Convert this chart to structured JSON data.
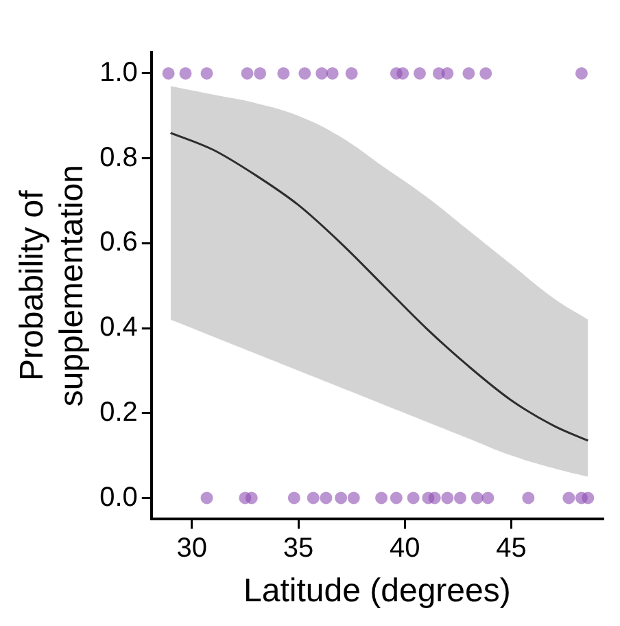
{
  "chart_data": {
    "type": "line",
    "xlabel": "Latitude (degrees)",
    "ylabel": "Probability of\nsupplementation",
    "xlim": [
      28.1,
      49.3
    ],
    "ylim": [
      -0.05,
      1.05
    ],
    "xticks": [
      30,
      35,
      40,
      45
    ],
    "yticks": [
      {
        "value": 0,
        "label": "0.0"
      },
      0.2,
      0.4,
      0.6,
      0.8,
      {
        "value": 1,
        "label": "1.0"
      }
    ],
    "grid": false,
    "legend": false,
    "series": [
      {
        "color": "#000000",
        "marker": "none",
        "line_style": "solid",
        "x": [
          29,
          31,
          33,
          35,
          37,
          39,
          41,
          43,
          45,
          47,
          48.6
        ],
        "values": [
          0.86,
          0.82,
          0.76,
          0.69,
          0.6,
          0.5,
          0.4,
          0.31,
          0.23,
          0.17,
          0.135
        ],
        "lower": [
          0.42,
          0.38,
          0.34,
          0.3,
          0.26,
          0.22,
          0.18,
          0.14,
          0.1,
          0.07,
          0.05
        ],
        "upper": [
          0.97,
          0.95,
          0.93,
          0.9,
          0.85,
          0.78,
          0.71,
          0.63,
          0.55,
          0.47,
          0.42
        ]
      },
      {
        "type": "scatter",
        "color": "#8e4fb3",
        "marker": "circle",
        "x": [
          28.9,
          29.7,
          30.7,
          32.6,
          33.2,
          34.3,
          35.3,
          36.1,
          36.6,
          37.5,
          39.6,
          39.9,
          40.7,
          41.6,
          42.0,
          43.0,
          43.8,
          48.3,
          30.7,
          32.5,
          32.8,
          34.8,
          35.7,
          36.3,
          37.0,
          37.6,
          38.9,
          39.6,
          40.4,
          41.1,
          41.4,
          42.0,
          42.6,
          43.4,
          43.9,
          45.8,
          47.7,
          48.3,
          48.6
        ],
        "values": [
          1,
          1,
          1,
          1,
          1,
          1,
          1,
          1,
          1,
          1,
          1,
          1,
          1,
          1,
          1,
          1,
          1,
          1,
          0,
          0,
          0,
          0,
          0,
          0,
          0,
          0,
          0,
          0,
          0,
          0,
          0,
          0,
          0,
          0,
          0,
          0,
          0,
          0,
          0
        ]
      }
    ]
  }
}
